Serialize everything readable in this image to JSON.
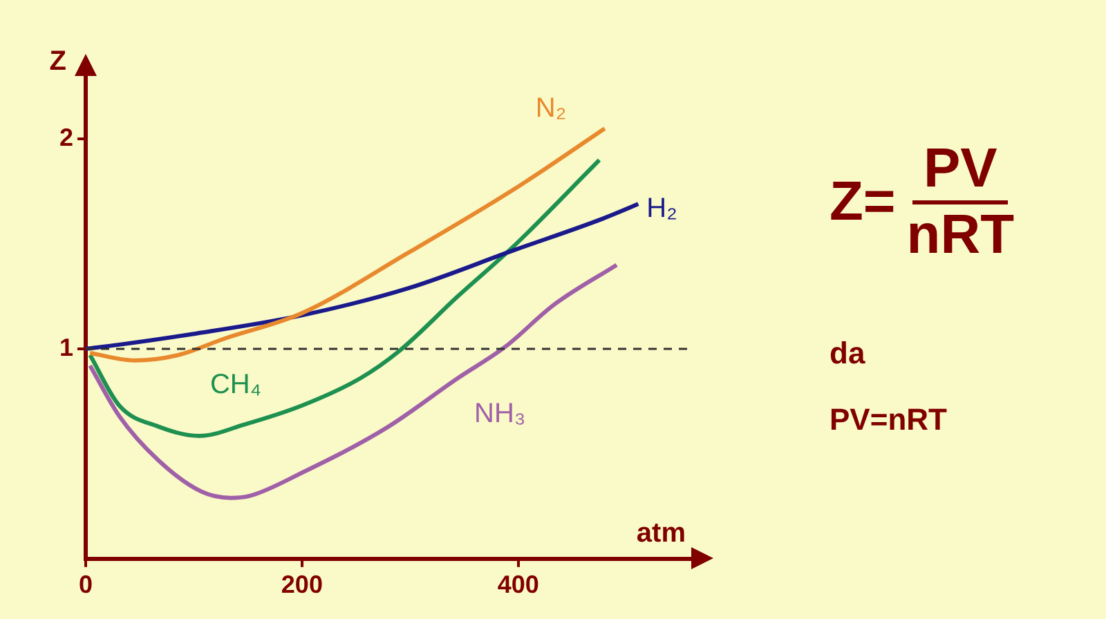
{
  "chart_data": {
    "type": "line",
    "xlabel": "atm",
    "ylabel": "Z",
    "xlim": [
      0,
      560
    ],
    "ylim": [
      0,
      2.3
    ],
    "xticks": [
      0,
      200,
      400
    ],
    "yticks": [
      1,
      2
    ],
    "grid": false,
    "legend": false,
    "marker": "none",
    "line_style": "solid",
    "series": [
      {
        "name": "N₂",
        "color": "#e8892e",
        "x": [
          4,
          45,
          85,
          129,
          200,
          299,
          396,
          480
        ],
        "values": [
          0.98,
          0.945,
          0.97,
          1.05,
          1.17,
          1.46,
          1.76,
          2.05
        ]
      },
      {
        "name": "H₂",
        "color": "#1a1a8c",
        "x": [
          0,
          31,
          98,
          200,
          299,
          396,
          478,
          511
        ],
        "values": [
          1.0,
          1.02,
          1.07,
          1.16,
          1.29,
          1.47,
          1.62,
          1.69
        ]
      },
      {
        "name": "CH₄",
        "color": "#1e9050",
        "x": [
          4,
          31,
          67,
          105,
          147,
          200,
          254,
          290,
          344,
          396,
          475
        ],
        "values": [
          0.97,
          0.73,
          0.63,
          0.585,
          0.64,
          0.73,
          0.86,
          0.99,
          1.25,
          1.49,
          1.9
        ]
      },
      {
        "name": "NH₃",
        "color": "#a060a8",
        "x": [
          4,
          31,
          67,
          107,
          134,
          152,
          200,
          277,
          344,
          388,
          433,
          491
        ],
        "values": [
          0.92,
          0.68,
          0.47,
          0.32,
          0.29,
          0.3,
          0.41,
          0.62,
          0.86,
          1.01,
          1.21,
          1.4
        ]
      }
    ],
    "ref_lines": [
      {
        "axis": "y",
        "value": 1,
        "color": "#333333",
        "line_style": "dashed"
      }
    ],
    "annotations": [
      "Z=",
      "PV",
      "nRT",
      "da",
      "PV=nRT"
    ]
  }
}
